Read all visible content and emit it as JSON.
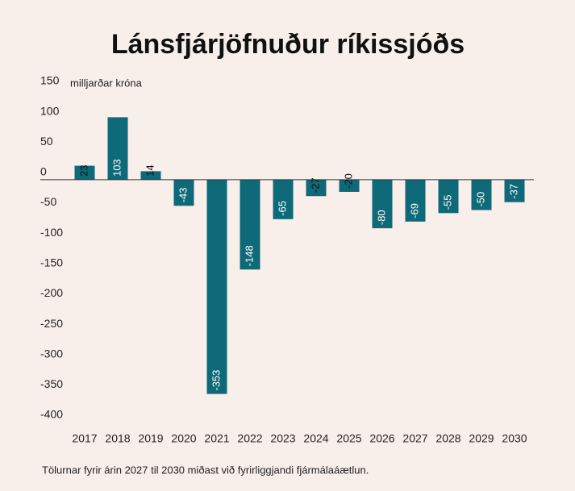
{
  "chart_data": {
    "type": "bar",
    "title": "Lánsfjárjöfnuður ríkissjóðs",
    "y_label": "milljarðar króna",
    "categories": [
      "2017",
      "2018",
      "2019",
      "2020",
      "2021",
      "2022",
      "2023",
      "2024",
      "2025",
      "2026",
      "2027",
      "2028",
      "2029",
      "2030"
    ],
    "values": [
      23,
      103,
      14,
      -43,
      -353,
      -148,
      -65,
      -27,
      -20,
      -80,
      -69,
      -55,
      -50,
      -37
    ],
    "color": "#0e6978",
    "ylim": [
      -400,
      150
    ],
    "yticks": [
      150,
      100,
      50,
      0,
      -50,
      -100,
      -150,
      -200,
      -250,
      -300,
      -350,
      -400
    ],
    "grid": false,
    "note": "Tölurnar fyrir árin 2027 til 2030 miðast við fyrirliggjandi fjármálaáætlun."
  }
}
